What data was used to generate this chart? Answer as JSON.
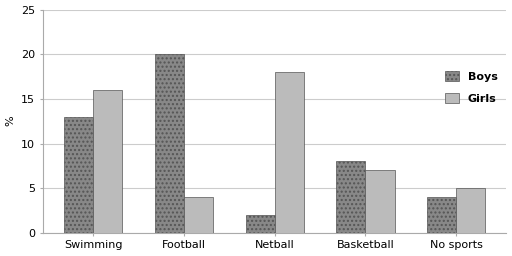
{
  "categories": [
    "Swimming",
    "Football",
    "Netball",
    "Basketball",
    "No sports"
  ],
  "boys": [
    13,
    20,
    2,
    8,
    4
  ],
  "girls": [
    16,
    4,
    18,
    7,
    5
  ],
  "ylabel": "%",
  "ylim": [
    0,
    25
  ],
  "yticks": [
    0,
    5,
    10,
    15,
    20,
    25
  ],
  "legend_labels": [
    "Boys",
    "Girls"
  ],
  "boys_hatch": "....",
  "girls_hatch": "====",
  "bar_width": 0.32,
  "background_color": "#ffffff",
  "grid_color": "#cccccc",
  "boys_bar_color": "#888888",
  "girls_bar_color": "#bbbbbb",
  "bar_edge_color": "#555555",
  "axis_fontsize": 8,
  "legend_fontsize": 8,
  "tick_fontsize": 8
}
